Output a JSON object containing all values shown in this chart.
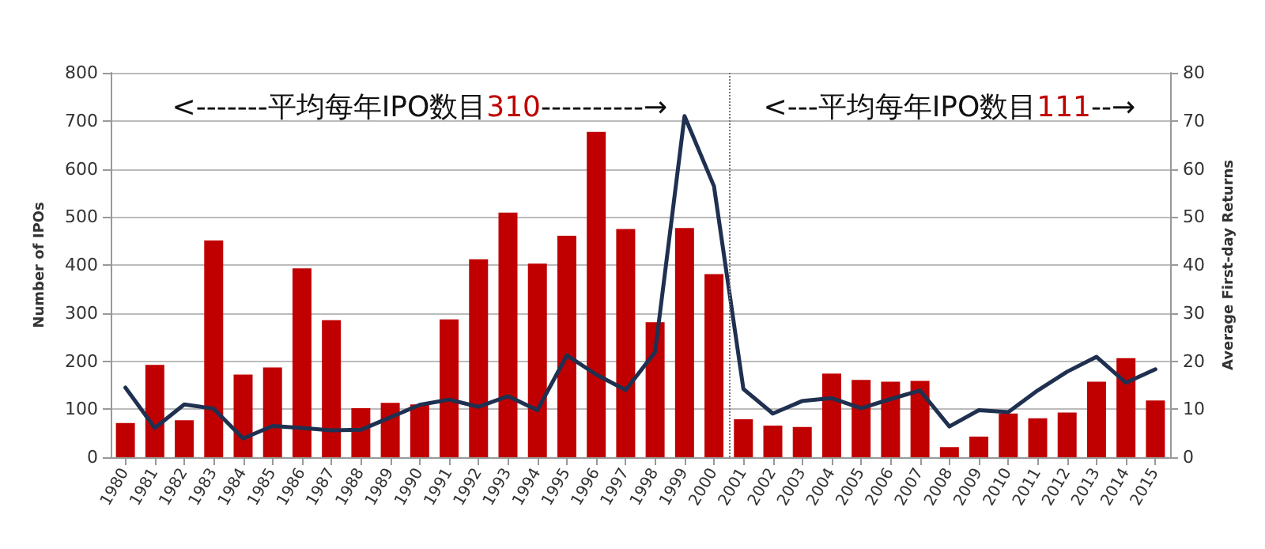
{
  "chart_data": {
    "type": "bar",
    "x": [
      1980,
      1981,
      1982,
      1983,
      1984,
      1985,
      1986,
      1987,
      1988,
      1989,
      1990,
      1991,
      1992,
      1993,
      1994,
      1995,
      1996,
      1997,
      1998,
      1999,
      2000,
      2001,
      2002,
      2003,
      2004,
      2005,
      2006,
      2007,
      2008,
      2009,
      2010,
      2011,
      2012,
      2013,
      2014,
      2015
    ],
    "series": [
      {
        "color": "#c00000",
        "values": [
          71,
          192,
          77,
          451,
          172,
          187,
          393,
          285,
          102,
          113,
          110,
          287,
          412,
          509,
          403,
          461,
          677,
          475,
          281,
          477,
          381,
          79,
          66,
          63,
          174,
          161,
          157,
          159,
          21,
          43,
          91,
          81,
          93,
          157,
          206,
          118
        ]
      },
      {
        "type": "line",
        "axis": "y2",
        "color": "#1f3050",
        "values": [
          14.5,
          6.1,
          11,
          10.1,
          3.9,
          6.5,
          6.1,
          5.6,
          5.7,
          8.3,
          10.9,
          12,
          10.5,
          12.7,
          9.8,
          21.2,
          17.2,
          14,
          21.9,
          71,
          56.4,
          14.2,
          9.1,
          11.7,
          12.3,
          10.2,
          12.1,
          13.9,
          6.4,
          9.8,
          9.4,
          13.9,
          17.8,
          20.9,
          15.5,
          18.3
        ]
      }
    ],
    "xlim": [
      1979.5,
      2015.5
    ],
    "xticks": [
      1980,
      1981,
      1982,
      1983,
      1984,
      1985,
      1986,
      1987,
      1988,
      1989,
      1990,
      1991,
      1992,
      1993,
      1994,
      1995,
      1996,
      1997,
      1998,
      1999,
      2000,
      2001,
      2002,
      2003,
      2004,
      2005,
      2006,
      2007,
      2008,
      2009,
      2010,
      2011,
      2012,
      2013,
      2014,
      2015
    ],
    "ylabel": "Number of IPOs",
    "y2label": "Average First-day Returns",
    "ylim": [
      0,
      800
    ],
    "yticks": [
      0,
      100,
      200,
      300,
      400,
      500,
      600,
      700,
      800
    ],
    "y2lim": [
      0,
      80
    ],
    "y2ticks": [
      0,
      10,
      20,
      30,
      40,
      50,
      60,
      70,
      80
    ],
    "ref_lines": [
      {
        "axis": "x",
        "value": 2000.5,
        "color": "#777777",
        "line_style": "dotted"
      }
    ],
    "annotations": [
      "<-------平均每年IPO数目310----------→",
      "<---平均每年IPO数目111--→"
    ],
    "grid": "y",
    "marker": "none",
    "line_style": "solid"
  }
}
